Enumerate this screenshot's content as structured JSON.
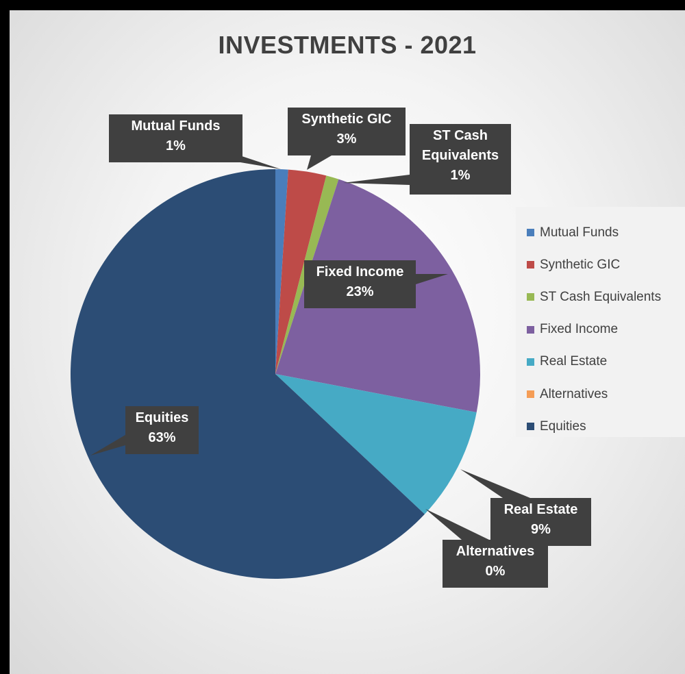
{
  "chart_data": {
    "type": "pie",
    "title": "INVESTMENTS - 2021",
    "slices": [
      {
        "name": "Mutual Funds",
        "value": 1,
        "label": "1%",
        "color": "#4a7ebb"
      },
      {
        "name": "Synthetic GIC",
        "value": 3,
        "label": "3%",
        "color": "#be4b48"
      },
      {
        "name": "ST Cash Equivalents",
        "value": 1,
        "label": "1%",
        "color": "#98b954"
      },
      {
        "name": "Fixed Income",
        "value": 23,
        "label": "23%",
        "color": "#7d60a0"
      },
      {
        "name": "Real Estate",
        "value": 9,
        "label": "9%",
        "color": "#46aac5"
      },
      {
        "name": "Alternatives",
        "value": 0,
        "label": "0%",
        "color": "#f59d56"
      },
      {
        "name": "Equities",
        "value": 63,
        "label": "63%",
        "color": "#2c4d75"
      }
    ],
    "legend_position": "right",
    "start_angle": "top, clockwise"
  }
}
